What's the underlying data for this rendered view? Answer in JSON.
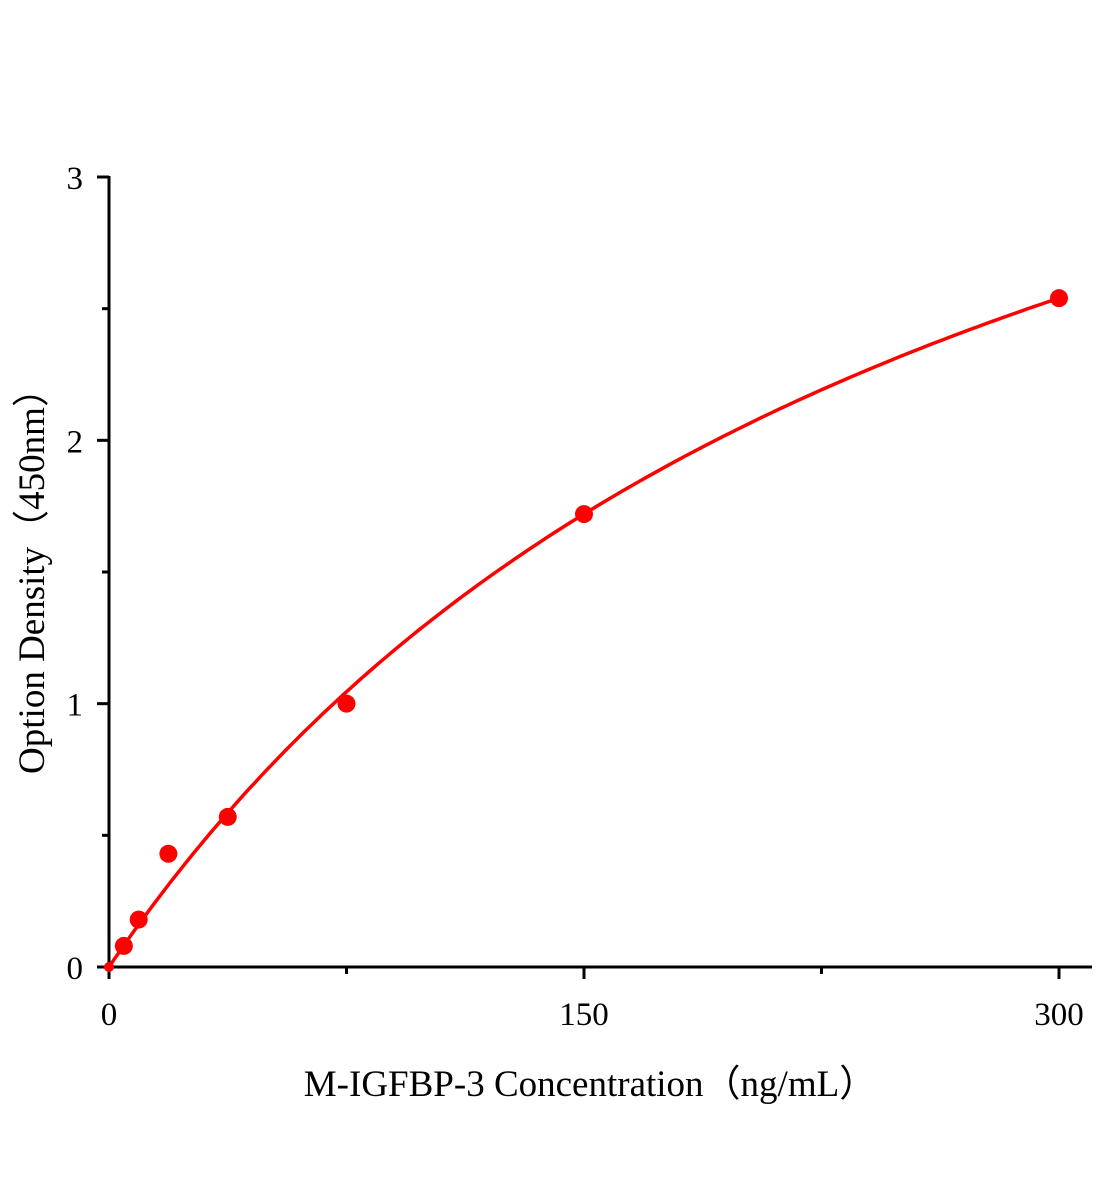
{
  "chart_data": {
    "type": "scatter",
    "title": "",
    "xlabel": "M-IGFBP-3 Concentration（ng/mL）",
    "ylabel": "Option Density（450nm）",
    "xlim": [
      0,
      310
    ],
    "ylim": [
      0,
      3
    ],
    "xticks": [
      0,
      150,
      300
    ],
    "xtick_labels": [
      "0",
      "150",
      "300"
    ],
    "x_minor_ticks": [
      75,
      225
    ],
    "yticks": [
      0,
      1,
      2,
      3
    ],
    "ytick_labels": [
      "0",
      "1",
      "2",
      "3"
    ],
    "y_minor_ticks": [
      0.5,
      1.5,
      2.5
    ],
    "grid": false,
    "legend": "none",
    "series": [
      {
        "x": [
          0,
          4.69,
          9.38,
          18.75,
          37.5,
          75,
          150,
          300
        ],
        "y": [
          0.0,
          0.08,
          0.18,
          0.43,
          0.57,
          1.0,
          1.72,
          2.54
        ],
        "marker": "circle",
        "fit_line": true
      }
    ],
    "colors": {
      "series": "#ff0000",
      "fit": "#ff0000",
      "axes": "#000000"
    }
  }
}
